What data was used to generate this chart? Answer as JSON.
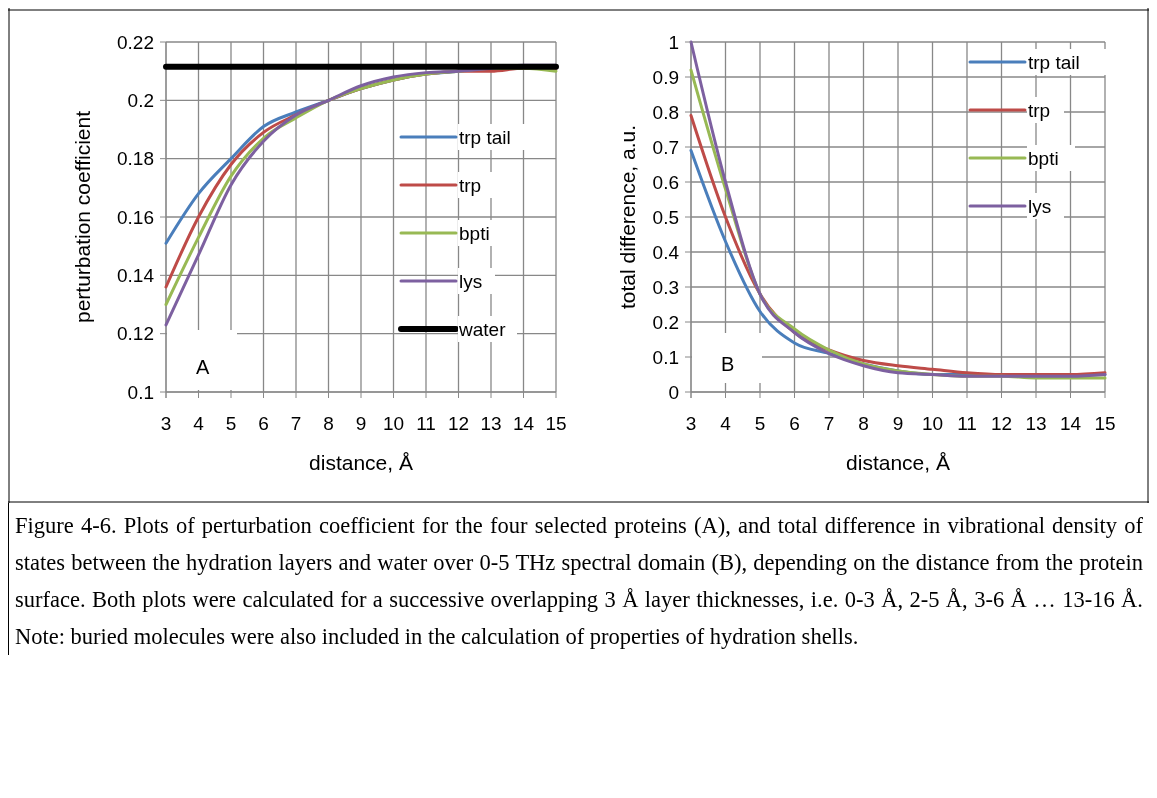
{
  "chart_data": [
    {
      "type": "line",
      "xlabel": "distance, Å",
      "ylabel": "perturbation coefficient",
      "x": [
        3,
        4,
        5,
        6,
        7,
        8,
        9,
        10,
        11,
        12,
        13,
        14,
        15
      ],
      "xlim": [
        3,
        15
      ],
      "xticks": [
        3,
        4,
        5,
        6,
        7,
        8,
        9,
        10,
        11,
        12,
        13,
        14,
        15
      ],
      "ylim": [
        0.1,
        0.22
      ],
      "yticks": [
        0.1,
        0.12,
        0.14,
        0.16,
        0.18,
        0.2,
        0.22
      ],
      "grid": true,
      "legend": "right",
      "annotations": [
        "A"
      ],
      "series": [
        {
          "name": "trp tail",
          "color": "#4a7ebb",
          "values": [
            0.151,
            0.168,
            0.18,
            0.191,
            0.196,
            0.2,
            0.204,
            0.207,
            0.209,
            0.21,
            0.2115,
            null,
            null
          ]
        },
        {
          "name": "trp",
          "color": "#be4b48",
          "values": [
            0.136,
            0.16,
            0.178,
            0.189,
            0.195,
            0.2,
            0.204,
            0.207,
            0.209,
            0.21,
            0.21,
            0.211,
            0.211
          ]
        },
        {
          "name": "bpti",
          "color": "#98b954",
          "values": [
            0.13,
            0.153,
            0.174,
            0.187,
            0.194,
            0.2,
            0.204,
            0.207,
            0.209,
            0.21,
            0.211,
            0.211,
            0.21
          ]
        },
        {
          "name": "lys",
          "color": "#7d60a0",
          "values": [
            0.123,
            0.147,
            0.171,
            0.186,
            0.195,
            0.2,
            0.205,
            0.208,
            0.2095,
            0.21,
            0.211,
            0.212,
            0.212
          ]
        },
        {
          "name": "water",
          "color": "#000000",
          "values": [
            0.2115,
            0.2115,
            0.2115,
            0.2115,
            0.2115,
            0.2115,
            0.2115,
            0.2115,
            0.2115,
            0.2115,
            0.2115,
            0.2115,
            0.2115
          ]
        }
      ]
    },
    {
      "type": "line",
      "xlabel": "distance, Å",
      "ylabel": "total difference, a.u.",
      "x": [
        3,
        4,
        5,
        6,
        7,
        8,
        9,
        10,
        11,
        12,
        13,
        14,
        15
      ],
      "xlim": [
        3,
        15
      ],
      "xticks": [
        3,
        4,
        5,
        6,
        7,
        8,
        9,
        10,
        11,
        12,
        13,
        14,
        15
      ],
      "ylim": [
        0,
        1
      ],
      "yticks": [
        0,
        0.1,
        0.2,
        0.3,
        0.4,
        0.5,
        0.6,
        0.7,
        0.8,
        0.9,
        1
      ],
      "grid": true,
      "legend": "top right",
      "annotations": [
        "B",
        "Figure 4-6. Plots of perturbation coefficient for the four selected proteins (A), and total difference in vibrational density of states between the hydration layers and water over 0-5 THz spectral domain (B), depending on the distance from the protein surface. Both plots were calculated for a successive overlapping 3 Å layer thicknesses, i.e. 0-3 Å, 2-5 Å, 3-6 Å … 13-16 Å. Note: buried molecules were also included in the calculation of properties of hydration shells."
      ],
      "series": [
        {
          "name": "trp tail",
          "color": "#4a7ebb",
          "values": [
            0.69,
            0.43,
            0.23,
            0.14,
            0.11,
            0.08,
            0.06,
            0.05,
            0.05,
            0.05,
            0.05,
            0.05,
            0.05
          ]
        },
        {
          "name": "trp",
          "color": "#be4b48",
          "values": [
            0.79,
            0.5,
            0.28,
            0.17,
            0.12,
            0.09,
            0.075,
            0.065,
            0.055,
            0.05,
            0.05,
            0.05,
            0.055
          ]
        },
        {
          "name": "bpti",
          "color": "#98b954",
          "values": [
            0.92,
            0.58,
            0.28,
            0.18,
            0.12,
            0.08,
            0.06,
            0.05,
            0.045,
            0.045,
            0.04,
            0.04,
            0.04
          ]
        },
        {
          "name": "lys",
          "color": "#7d60a0",
          "values": [
            1.0,
            0.6,
            0.28,
            0.17,
            0.11,
            0.075,
            0.055,
            0.05,
            0.045,
            0.045,
            0.045,
            0.045,
            0.05
          ]
        }
      ]
    }
  ]
}
